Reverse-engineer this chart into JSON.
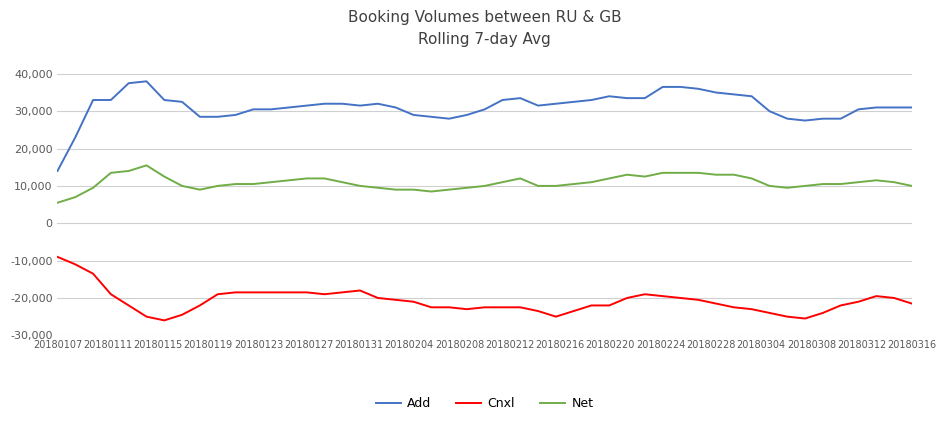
{
  "title_line1": "Booking Volumes between RU & GB",
  "title_line2": "Rolling 7-day Avg",
  "ylim": [
    -30000,
    45000
  ],
  "yticks": [
    -30000,
    -20000,
    -10000,
    0,
    10000,
    20000,
    30000,
    40000
  ],
  "ytick_labels": [
    "-30,000",
    "-20,000",
    "-10,000",
    "0",
    "10,000",
    "20,000",
    "30,000",
    "40,000"
  ],
  "legend_labels": [
    "Add",
    "Cnxl",
    "Net"
  ],
  "line_colors": [
    "#4472C4",
    "#FF0000",
    "#70AD47"
  ],
  "x_labels": [
    "20180107",
    "20180111",
    "20180115",
    "20180119",
    "20180123",
    "20180127",
    "20180131",
    "20180204",
    "20180208",
    "20180212",
    "20180216",
    "20180220",
    "20180224",
    "20180228",
    "20180304",
    "20180308",
    "20180312",
    "20180316"
  ],
  "add_data": [
    14000,
    23000,
    33000,
    33000,
    37500,
    38000,
    33000,
    32500,
    28500,
    28500,
    29000,
    30500,
    30500,
    31000,
    31500,
    32000,
    32000,
    31500,
    32000,
    31000,
    29000,
    28500,
    28000,
    29000,
    30500,
    33000,
    33500,
    31500,
    32000,
    32500,
    33000,
    34000,
    33500,
    33500,
    36500,
    36500,
    36000,
    35000,
    34500,
    34000,
    30000,
    28000,
    27500,
    28000,
    28000,
    30500,
    31000,
    31000,
    31000
  ],
  "cnxl_data": [
    -9000,
    -11000,
    -13500,
    -19000,
    -22000,
    -25000,
    -26000,
    -24500,
    -22000,
    -19000,
    -18500,
    -18500,
    -18500,
    -18500,
    -18500,
    -19000,
    -18500,
    -18000,
    -20000,
    -20500,
    -21000,
    -22500,
    -22500,
    -23000,
    -22500,
    -22500,
    -22500,
    -23500,
    -25000,
    -23500,
    -22000,
    -22000,
    -20000,
    -19000,
    -19500,
    -20000,
    -20500,
    -21500,
    -22500,
    -23000,
    -24000,
    -25000,
    -25500,
    -24000,
    -22000,
    -21000,
    -19500,
    -20000,
    -21500
  ],
  "net_data": [
    5500,
    7000,
    9500,
    13500,
    14000,
    15500,
    12500,
    10000,
    9000,
    10000,
    10500,
    10500,
    11000,
    11500,
    12000,
    12000,
    11000,
    10000,
    9500,
    9000,
    9000,
    8500,
    9000,
    9500,
    10000,
    11000,
    12000,
    10000,
    10000,
    10500,
    11000,
    12000,
    13000,
    12500,
    13500,
    13500,
    13500,
    13000,
    13000,
    12000,
    10000,
    9500,
    10000,
    10500,
    10500,
    11000,
    11500,
    11000,
    10000
  ]
}
